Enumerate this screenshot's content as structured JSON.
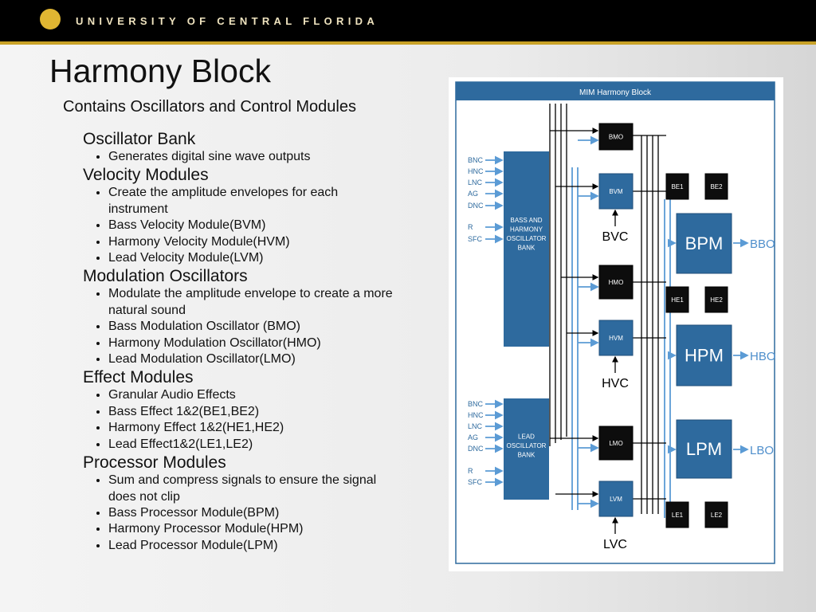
{
  "header": {
    "title": "UNIVERSITY OF CENTRAL FLORIDA"
  },
  "slide": {
    "title": "Harmony Block",
    "subtitle": "Contains Oscillators  and Control Modules",
    "sections": [
      {
        "heading": "Oscillator Bank",
        "bullets": [
          "Generates digital sine wave outputs"
        ]
      },
      {
        "heading": "Velocity Modules",
        "bullets": [
          "Create the amplitude envelopes for each instrument",
          "Bass Velocity Module(BVM)",
          "Harmony Velocity Module(HVM)",
          "Lead Velocity Module(LVM)"
        ]
      },
      {
        "heading": "Modulation Oscillators",
        "bullets": [
          "Modulate the amplitude envelope to create a more natural sound",
          "Bass Modulation Oscillator (BMO)",
          "Harmony Modulation Oscillator(HMO)",
          "Lead Modulation Oscillator(LMO)"
        ]
      },
      {
        "heading": "Effect Modules",
        "bullets": [
          "Granular Audio Effects",
          "Bass Effect 1&2(BE1,BE2)",
          "Harmony Effect 1&2(HE1,HE2)",
          "Lead Effect1&2(LE1,LE2)"
        ]
      },
      {
        "heading": "Processor Modules",
        "bullets": [
          "Sum and compress signals to ensure the signal does not clip",
          "Bass Processor Module(BPM)",
          "Harmony Processor Module(HPM)",
          "Lead Processor Module(LPM)"
        ]
      }
    ]
  },
  "diagram": {
    "title": "MIM Harmony Block",
    "inputs_top": [
      "BNC",
      "HNC",
      "LNC",
      "AG",
      "DNC",
      "R",
      "SFC"
    ],
    "inputs_bottom": [
      "BNC",
      "HNC",
      "LNC",
      "AG",
      "DNC",
      "R",
      "SFC"
    ],
    "banks": [
      {
        "lines": [
          "BASS AND",
          "HARMONY",
          "OSCILLATOR",
          "BANK"
        ]
      },
      {
        "lines": [
          "LEAD",
          "OSCILLATOR",
          "BANK"
        ]
      }
    ],
    "modules": [
      "BMO",
      "BVM",
      "BE1",
      "BE2",
      "BPM",
      "HMO",
      "HE1",
      "HE2",
      "HVM",
      "HPM",
      "LMO",
      "LPM",
      "LVM",
      "LE1",
      "LE2"
    ],
    "controls": [
      "BVC",
      "HVC",
      "LVC"
    ],
    "outputs": [
      "BBO",
      "HBO",
      "LBO"
    ]
  }
}
